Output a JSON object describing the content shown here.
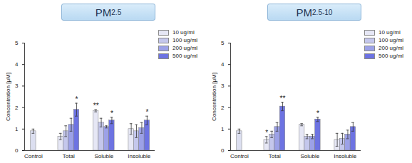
{
  "chart_data": [
    {
      "type": "bar",
      "title": "PM2.5",
      "categories": [
        "Control",
        "Total",
        "Soluble",
        "Insoluble"
      ],
      "control": {
        "category": "Control",
        "value": 0.9,
        "error": 0.1,
        "color": "#dcdff0"
      },
      "series": [
        {
          "name": "10 ug/ml",
          "color": "#e6e7f5",
          "values": [
            null,
            0.65,
            1.85,
            1.0
          ],
          "errors": [
            null,
            0.15,
            0.05,
            0.25
          ],
          "significance": [
            null,
            null,
            "**",
            null
          ]
        },
        {
          "name": "100 ug/ml",
          "color": "#c4c7ec",
          "values": [
            null,
            0.9,
            1.3,
            0.9
          ],
          "errors": [
            null,
            0.25,
            0.2,
            0.3
          ],
          "significance": [
            null,
            null,
            null,
            null
          ]
        },
        {
          "name": "200 ug/ml",
          "color": "#9ca1e7",
          "values": [
            null,
            1.2,
            1.1,
            1.05
          ],
          "errors": [
            null,
            0.3,
            0.05,
            0.25
          ],
          "significance": [
            null,
            null,
            null,
            null
          ]
        },
        {
          "name": "500 ug/ml",
          "color": "#6d73e2",
          "values": [
            null,
            1.9,
            1.4,
            1.4
          ],
          "errors": [
            null,
            0.3,
            0.15,
            0.2
          ],
          "significance": [
            null,
            "*",
            "*",
            "*"
          ]
        }
      ],
      "y_label": "Concentration [μM]",
      "ylim": [
        0,
        5
      ],
      "yticks": [
        0,
        1,
        2,
        3,
        4,
        5
      ],
      "legend": "right"
    },
    {
      "type": "bar",
      "title": "PM2.5-10",
      "categories": [
        "Control",
        "Total",
        "Soluble",
        "Insoluble"
      ],
      "control": {
        "category": "Control",
        "value": 0.9,
        "error": 0.1,
        "color": "#dcdff0"
      },
      "series": [
        {
          "name": "10 ug/ml",
          "color": "#e6e7f5",
          "values": [
            null,
            0.5,
            1.2,
            0.5
          ],
          "errors": [
            null,
            0.15,
            0.05,
            0.3
          ],
          "significance": [
            null,
            "*",
            null,
            null
          ]
        },
        {
          "name": "100 ug/ml",
          "color": "#c4c7ec",
          "values": [
            null,
            0.75,
            0.65,
            0.55
          ],
          "errors": [
            null,
            0.15,
            0.1,
            0.25
          ],
          "significance": [
            null,
            null,
            null,
            null
          ]
        },
        {
          "name": "200 ug/ml",
          "color": "#9ca1e7",
          "values": [
            null,
            1.1,
            0.65,
            0.75
          ],
          "errors": [
            null,
            0.2,
            0.1,
            0.2
          ],
          "significance": [
            null,
            null,
            null,
            null
          ]
        },
        {
          "name": "500 ug/ml",
          "color": "#6d73e2",
          "values": [
            null,
            2.05,
            1.45,
            1.1
          ],
          "errors": [
            null,
            0.2,
            0.1,
            0.2
          ],
          "significance": [
            null,
            "**",
            "*",
            null
          ]
        }
      ],
      "y_label": "Concentration [μM]",
      "ylim": [
        0,
        5
      ],
      "yticks": [
        0,
        1,
        2,
        3,
        4,
        5
      ],
      "legend": "right"
    }
  ]
}
